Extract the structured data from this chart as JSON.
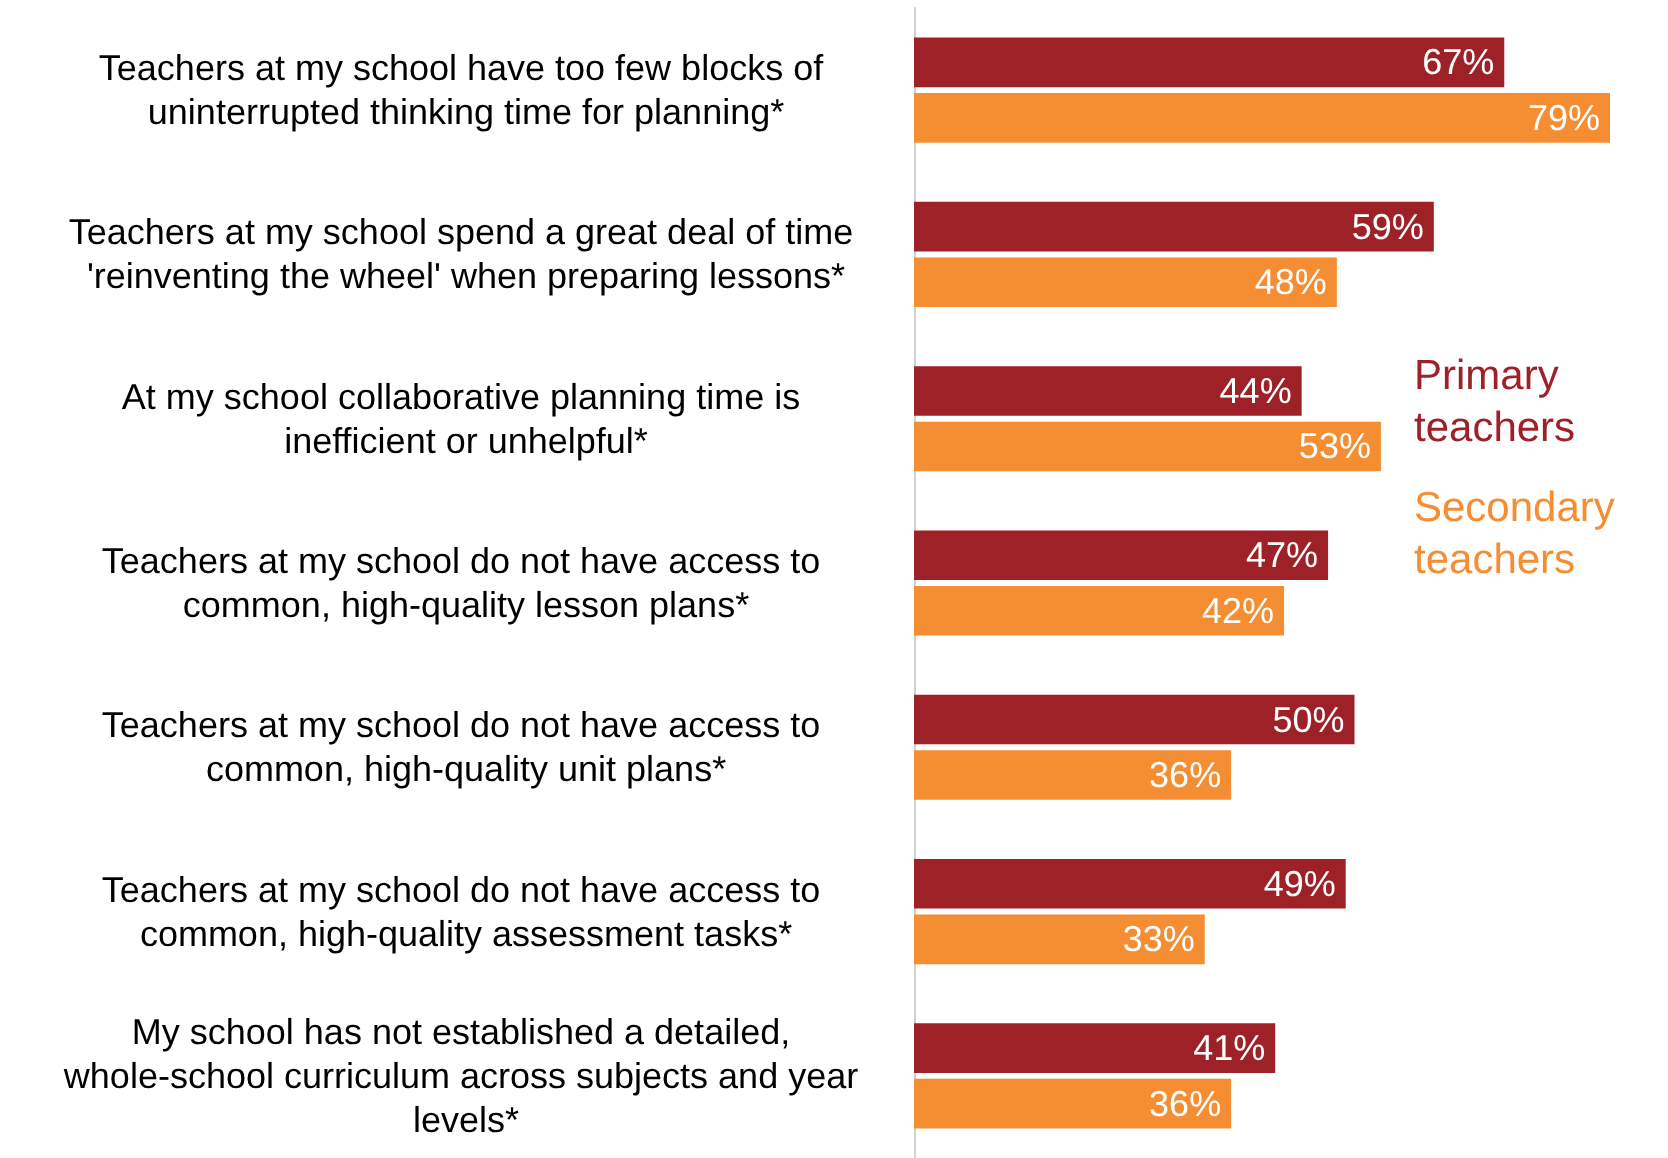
{
  "chart_data": {
    "type": "bar",
    "orientation": "horizontal",
    "legend": "right",
    "grid": false,
    "categories": [
      "Teachers at my school have too few blocks of uninterrupted thinking time for planning*",
      "Teachers at my school spend a great deal of time 'reinventing the wheel' when preparing lessons*",
      "At my school collaborative planning time is inefficient or unhelpful*",
      "Teachers at my school do not have access to common, high-quality lesson plans*",
      "Teachers at my school do not have access to common, high-quality unit plans*",
      "Teachers at my school do not have access to common, high-quality assessment tasks*",
      "My school has not established a detailed, whole-school curriculum across subjects and year levels*"
    ],
    "series": [
      {
        "name": "Primary teachers",
        "color": "#9e2128",
        "values": [
          67,
          59,
          44,
          47,
          50,
          49,
          41
        ],
        "value_labels": [
          "67%",
          "59%",
          "44%",
          "47%",
          "50%",
          "49%",
          "41%"
        ]
      },
      {
        "name": "Secondary teachers",
        "color": "#f58d33",
        "values": [
          79,
          48,
          53,
          42,
          36,
          33,
          36
        ],
        "value_labels": [
          "79%",
          "48%",
          "53%",
          "42%",
          "36%",
          "33%",
          "36%"
        ]
      }
    ]
  }
}
